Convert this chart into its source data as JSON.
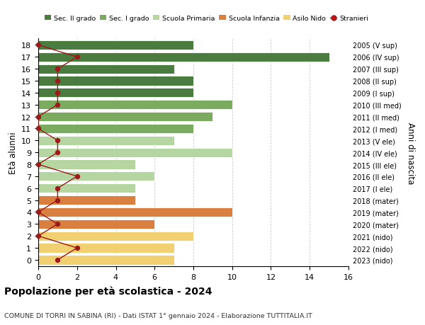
{
  "ages": [
    18,
    17,
    16,
    15,
    14,
    13,
    12,
    11,
    10,
    9,
    8,
    7,
    6,
    5,
    4,
    3,
    2,
    1,
    0
  ],
  "right_labels": [
    "2005 (V sup)",
    "2006 (IV sup)",
    "2007 (III sup)",
    "2008 (II sup)",
    "2009 (I sup)",
    "2010 (III med)",
    "2011 (II med)",
    "2012 (I med)",
    "2013 (V ele)",
    "2014 (IV ele)",
    "2015 (III ele)",
    "2016 (II ele)",
    "2017 (I ele)",
    "2018 (mater)",
    "2019 (mater)",
    "2020 (mater)",
    "2021 (nido)",
    "2022 (nido)",
    "2023 (nido)"
  ],
  "bar_values": [
    8,
    15,
    7,
    8,
    8,
    10,
    9,
    8,
    7,
    10,
    5,
    6,
    5,
    5,
    10,
    6,
    8,
    7,
    7
  ],
  "bar_colors": [
    "#4a7c40",
    "#4a7c40",
    "#4a7c40",
    "#4a7c40",
    "#4a7c40",
    "#7aab5e",
    "#7aab5e",
    "#7aab5e",
    "#b5d6a0",
    "#b5d6a0",
    "#b5d6a0",
    "#b5d6a0",
    "#b5d6a0",
    "#d98040",
    "#d98040",
    "#d98040",
    "#f0d070",
    "#f0d070",
    "#f0d070"
  ],
  "stranieri_values": [
    0,
    2,
    1,
    1,
    1,
    1,
    0,
    0,
    1,
    1,
    0,
    2,
    1,
    1,
    0,
    1,
    0,
    2,
    1
  ],
  "title": "Popolazione per età scolastica - 2024",
  "subtitle": "COMUNE DI TORRI IN SABINA (RI) - Dati ISTAT 1° gennaio 2024 - Elaborazione TUTTITALIA.IT",
  "ylabel": "Età alunni",
  "right_ylabel": "Anni di nascita",
  "xlim": [
    0,
    16
  ],
  "xticks": [
    0,
    2,
    4,
    6,
    8,
    10,
    12,
    14,
    16
  ],
  "legend_labels": [
    "Sec. II grado",
    "Sec. I grado",
    "Scuola Primaria",
    "Scuola Infanzia",
    "Asilo Nido",
    "Stranieri"
  ],
  "legend_colors": [
    "#4a7c40",
    "#7aab5e",
    "#b5d6a0",
    "#d98040",
    "#f0d070",
    "#cc1111"
  ],
  "stranieri_line_color": "#9b1a1a",
  "grid_color": "#cccccc",
  "bar_height": 0.78
}
